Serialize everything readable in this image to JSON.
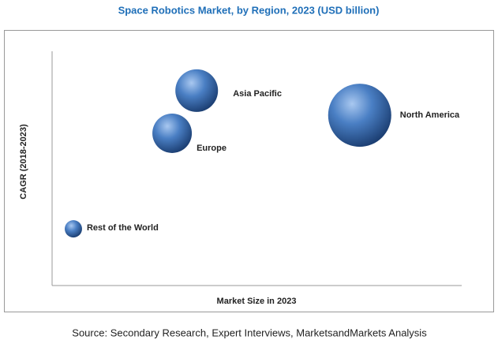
{
  "chart_data": {
    "type": "bubble",
    "title": "Space Robotics Market, by Region, 2023 (USD billion)",
    "xlabel": "Market Size in 2023",
    "ylabel": "CAGR (2018-2023)",
    "labels": [
      "North America",
      "Asia Pacific",
      "Europe",
      "Rest of the World"
    ],
    "x": [
      75.1,
      35.3,
      29.3,
      5.2
    ],
    "values": [
      72.7,
      83.2,
      65.0,
      24.2
    ],
    "sizes": [
      16,
      7.3,
      6.25,
      1.2
    ],
    "color": "#3b6db0",
    "xlim": [
      0,
      100
    ],
    "ylim": [
      0,
      100
    ]
  },
  "source": "Source: Secondary Research, Expert Interviews, MarketsandMarkets Analysis"
}
